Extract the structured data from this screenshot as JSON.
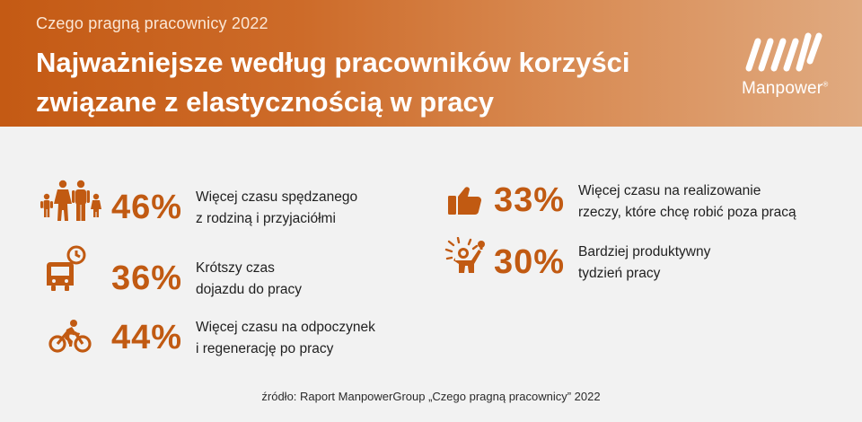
{
  "header": {
    "subtitle": "Czego pragną pracownicy 2022",
    "title_line1": "Najważniejsze według pracowników korzyści",
    "title_line2": "związane z elastycznością w pracy",
    "logo_text": "Manpower",
    "logo_mark": "®"
  },
  "colors": {
    "accent": "#c15a12",
    "header_start": "#c45a14",
    "header_end": "#e0aa80",
    "background": "#f2f2f2"
  },
  "benefits": [
    {
      "icon": "family-icon",
      "percent": "46%",
      "value": 46,
      "line1": "Więcej czasu spędzanego",
      "line2": "z rodziną i przyjaciółmi"
    },
    {
      "icon": "bus-clock-icon",
      "percent": "36%",
      "value": 36,
      "line1": "Krótszy czas",
      "line2": "dojazdu do pracy"
    },
    {
      "icon": "bicycle-icon",
      "percent": "44%",
      "value": 44,
      "line1": "Więcej czasu na odpoczynek",
      "line2": "i regenerację po pracy"
    },
    {
      "icon": "thumbs-up-icon",
      "percent": "33%",
      "value": 33,
      "line1": "Więcej czasu na realizowanie",
      "line2": "rzeczy, które chcę robić poza pracą"
    },
    {
      "icon": "productive-person-icon",
      "percent": "30%",
      "value": 30,
      "line1": "Bardziej produktywny",
      "line2": "tydzień pracy"
    }
  ],
  "source": "źródło: Raport ManpowerGroup „Czego pragną pracownicy” 2022"
}
